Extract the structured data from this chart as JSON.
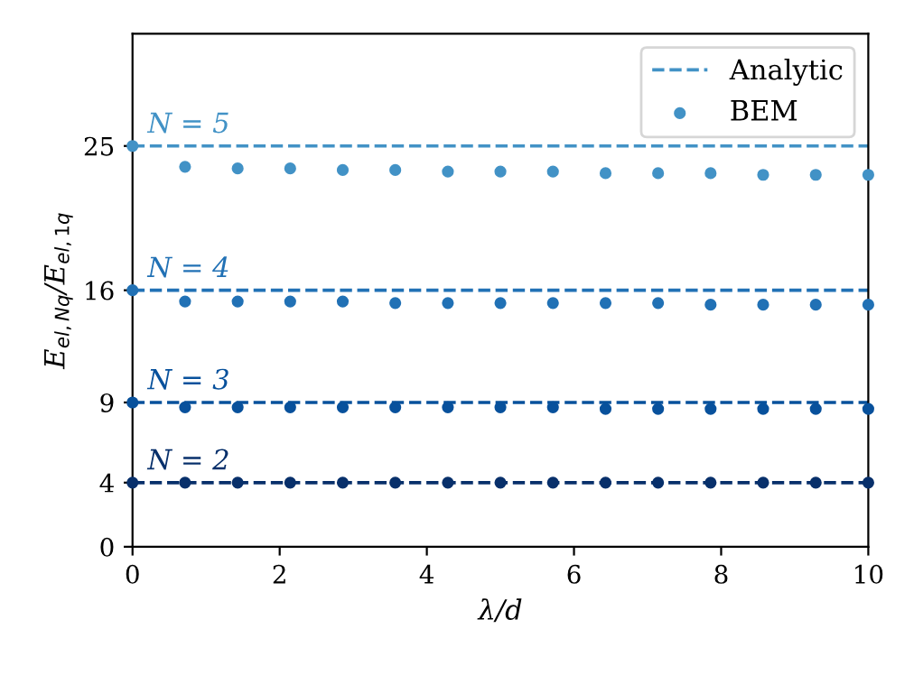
{
  "chart_data": {
    "type": "scatter",
    "xlabel": "λ/d",
    "ylabel": "E$_{el,Nq}$/E$_{el,1q}$",
    "xlim": [
      0,
      10
    ],
    "xticks": [
      0,
      2,
      4,
      6,
      8,
      10
    ],
    "ylim": [
      0,
      32
    ],
    "yticks": [
      0,
      4,
      9,
      16,
      25
    ],
    "grid": false,
    "legend": "top right",
    "annotations": [
      {
        "text": "N = 5",
        "y": 25
      },
      {
        "text": "N = 4",
        "y": 16
      },
      {
        "text": "N = 3",
        "y": 9
      },
      {
        "text": "N = 2",
        "y": 4
      }
    ],
    "series": [
      {
        "name": "Analytic",
        "type": "line",
        "line_style": "dashed",
        "color": "#4292c6",
        "x": [
          0,
          10
        ],
        "values": [
          25,
          25
        ]
      },
      {
        "name": "BEM",
        "marker": "circle",
        "color": "#4292c6",
        "x": [
          0,
          0.714,
          1.429,
          2.143,
          2.857,
          3.571,
          4.286,
          5,
          5.714,
          6.429,
          7.143,
          7.857,
          8.571,
          9.286,
          10
        ],
        "values": [
          25,
          23.7,
          23.6,
          23.6,
          23.5,
          23.5,
          23.4,
          23.4,
          23.4,
          23.3,
          23.3,
          23.3,
          23.2,
          23.2,
          23.2
        ]
      },
      {
        "type": "line",
        "line_style": "dashed",
        "color": "#2171b5",
        "x": [
          0,
          10
        ],
        "values": [
          16,
          16
        ]
      },
      {
        "marker": "circle",
        "color": "#2171b5",
        "x": [
          0,
          0.714,
          1.429,
          2.143,
          2.857,
          3.571,
          4.286,
          5,
          5.714,
          6.429,
          7.143,
          7.857,
          8.571,
          9.286,
          10
        ],
        "values": [
          16,
          15.3,
          15.3,
          15.3,
          15.3,
          15.2,
          15.2,
          15.2,
          15.2,
          15.2,
          15.2,
          15.1,
          15.1,
          15.1,
          15.1
        ]
      },
      {
        "type": "line",
        "line_style": "dashed",
        "color": "#08519c",
        "x": [
          0,
          10
        ],
        "values": [
          9,
          9
        ]
      },
      {
        "marker": "circle",
        "color": "#08519c",
        "x": [
          0,
          0.714,
          1.429,
          2.143,
          2.857,
          3.571,
          4.286,
          5,
          5.714,
          6.429,
          7.143,
          7.857,
          8.571,
          9.286,
          10
        ],
        "values": [
          9,
          8.7,
          8.7,
          8.7,
          8.7,
          8.7,
          8.7,
          8.7,
          8.7,
          8.6,
          8.6,
          8.6,
          8.6,
          8.6,
          8.6
        ]
      },
      {
        "type": "line",
        "line_style": "dashed",
        "color": "#08306b",
        "x": [
          0,
          10
        ],
        "values": [
          4,
          4
        ]
      },
      {
        "marker": "circle",
        "color": "#08306b",
        "x": [
          0,
          0.714,
          1.429,
          2.143,
          2.857,
          3.571,
          4.286,
          5,
          5.714,
          6.429,
          7.143,
          7.857,
          8.571,
          9.286,
          10
        ],
        "values": [
          4,
          4,
          4,
          4,
          4,
          4,
          4,
          4,
          4,
          4,
          4,
          4,
          4,
          4,
          4
        ]
      }
    ]
  }
}
